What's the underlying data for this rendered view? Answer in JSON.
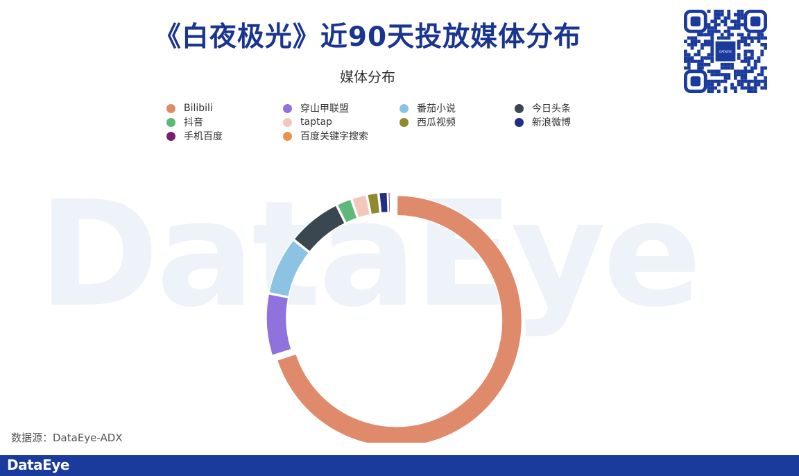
{
  "watermark": "DataEye",
  "title": "《白夜极光》近90天投放媒体分布",
  "source": "数据源：DataEye-ADX",
  "footer": {
    "logo": "DataEye"
  },
  "qr": {
    "center_label": "DATAEYE"
  },
  "colors": {
    "title": "#1a3590",
    "footer": "#1a3a9c"
  },
  "chart_data": {
    "type": "pie",
    "title": "媒体分布",
    "legend_position": "top",
    "categories": [
      "Bilibili",
      "穿山甲联盟",
      "番茄小说",
      "今日头条",
      "抖音",
      "taptap",
      "西瓜视频",
      "新浪微博",
      "手机百度",
      "百度关键字搜索"
    ],
    "values": [
      69.5,
      8.0,
      7.5,
      7.0,
      2.0,
      2.0,
      1.5,
      1.2,
      0.3,
      0.2
    ],
    "colors": [
      "#e08a6c",
      "#8f72dc",
      "#8cc3e3",
      "#3a4750",
      "#5db87a",
      "#f2c8bc",
      "#8f8a2e",
      "#1f2f86",
      "#7a1e6e",
      "#e8924a"
    ]
  }
}
